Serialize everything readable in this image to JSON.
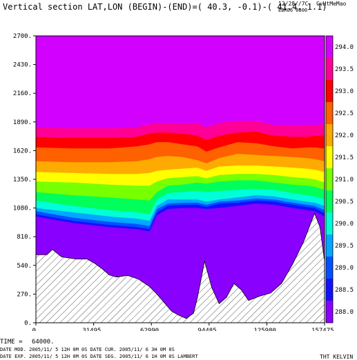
{
  "header": {
    "title": "Vertical section LAT,LON (BEGIN)-(END)=( 40.3, -0.1)-( 41.4,  1.1)",
    "date_code": "12/28//7C",
    "run_code": "EBR06 0300",
    "org_code": "CvHtMeMao"
  },
  "footer": {
    "time_label": "TIME =",
    "time_value": "64000.",
    "line1": "DATE MOD. 2005/11/ 5   12H 0M 0S     DATE CUR. 2005/11/ 6   3H 0M 0S",
    "line2": "DATE EXP.  2005/11/ 5  12H 0M 0S     DATE SEG. 2005/11/ 6   1H 0M 0S     LAMBERT",
    "variable": "THT KELVIN"
  },
  "chart_data": {
    "type": "contour",
    "x": {
      "ticks": [
        0,
        31495,
        62990,
        94485,
        125980,
        157475
      ],
      "tick_labels": [
        "0.",
        "31495.",
        "62990.",
        "94485.",
        "125980.",
        "157475."
      ],
      "range": [
        0,
        157475
      ]
    },
    "y": {
      "ticks": [
        0,
        270,
        540,
        810,
        1080,
        1350,
        1620,
        1890,
        2160,
        2430,
        2700
      ],
      "tick_labels": [
        "0.",
        "270.",
        "540.",
        "810.",
        "1080.",
        "1350.",
        "1620.",
        "1890.",
        "2160.",
        "2430.",
        "2700."
      ],
      "range": [
        0,
        2700
      ]
    },
    "colorbar": {
      "levels": [
        288.0,
        288.5,
        289.0,
        289.5,
        290.0,
        290.5,
        291.0,
        291.5,
        292.0,
        292.5,
        293.0,
        293.5,
        294.0
      ],
      "labels": [
        "288.0",
        "288.5",
        "289.0",
        "289.5",
        "290.0",
        "290.5",
        "291.0",
        "291.5",
        "292.0",
        "292.5",
        "293.0",
        "293.5",
        "294.0"
      ],
      "colors": [
        "#8a00ff",
        "#1410ff",
        "#0050ff",
        "#00a8ff",
        "#00ffd8",
        "#00ff5a",
        "#78ff00",
        "#ffff00",
        "#ffaa00",
        "#ff6000",
        "#ff0000",
        "#ff0096",
        "#d200ff"
      ]
    },
    "terrain": [
      [
        0,
        640
      ],
      [
        6000,
        640
      ],
      [
        9000,
        690
      ],
      [
        14000,
        620
      ],
      [
        22000,
        600
      ],
      [
        28000,
        600
      ],
      [
        32000,
        560
      ],
      [
        36000,
        510
      ],
      [
        40000,
        450
      ],
      [
        44000,
        430
      ],
      [
        50000,
        445
      ],
      [
        56000,
        410
      ],
      [
        62000,
        340
      ],
      [
        66000,
        270
      ],
      [
        70000,
        190
      ],
      [
        74000,
        110
      ],
      [
        78000,
        70
      ],
      [
        82000,
        40
      ],
      [
        86000,
        90
      ],
      [
        88000,
        230
      ],
      [
        90000,
        400
      ],
      [
        92000,
        580
      ],
      [
        96000,
        330
      ],
      [
        100000,
        180
      ],
      [
        104000,
        240
      ],
      [
        108000,
        370
      ],
      [
        112000,
        310
      ],
      [
        116000,
        210
      ],
      [
        122000,
        250
      ],
      [
        128000,
        280
      ],
      [
        134000,
        370
      ],
      [
        140000,
        550
      ],
      [
        146000,
        760
      ],
      [
        152000,
        1030
      ],
      [
        155000,
        900
      ],
      [
        157475,
        580
      ]
    ],
    "contours": [
      {
        "level": 288.0,
        "points": [
          [
            0,
            1000
          ],
          [
            20000,
            940
          ],
          [
            40000,
            900
          ],
          [
            55000,
            880
          ],
          [
            62000,
            860
          ],
          [
            66000,
            1010
          ],
          [
            72000,
            1070
          ],
          [
            80000,
            1080
          ],
          [
            88000,
            1080
          ],
          [
            93000,
            1070
          ],
          [
            100000,
            1080
          ],
          [
            110000,
            1100
          ],
          [
            120000,
            1120
          ],
          [
            130000,
            1110
          ],
          [
            140000,
            1080
          ],
          [
            148000,
            1060
          ],
          [
            152000,
            1050
          ],
          [
            157475,
            1000
          ]
        ]
      },
      {
        "level": 288.5,
        "points": [
          [
            0,
            1020
          ],
          [
            20000,
            960
          ],
          [
            40000,
            920
          ],
          [
            55000,
            900
          ],
          [
            62000,
            880
          ],
          [
            66000,
            1040
          ],
          [
            72000,
            1100
          ],
          [
            80000,
            1110
          ],
          [
            88000,
            1110
          ],
          [
            93000,
            1090
          ],
          [
            100000,
            1120
          ],
          [
            110000,
            1130
          ],
          [
            120000,
            1150
          ],
          [
            130000,
            1140
          ],
          [
            140000,
            1110
          ],
          [
            148000,
            1090
          ],
          [
            152000,
            1080
          ],
          [
            157475,
            1030
          ]
        ]
      },
      {
        "level": 289.0,
        "points": [
          [
            0,
            1050
          ],
          [
            20000,
            990
          ],
          [
            40000,
            950
          ],
          [
            55000,
            930
          ],
          [
            62000,
            910
          ],
          [
            66000,
            1070
          ],
          [
            72000,
            1120
          ],
          [
            80000,
            1130
          ],
          [
            88000,
            1130
          ],
          [
            93000,
            1110
          ],
          [
            100000,
            1140
          ],
          [
            110000,
            1150
          ],
          [
            120000,
            1170
          ],
          [
            130000,
            1160
          ],
          [
            140000,
            1130
          ],
          [
            148000,
            1110
          ],
          [
            152000,
            1100
          ],
          [
            157475,
            1060
          ]
        ]
      },
      {
        "level": 289.5,
        "points": [
          [
            0,
            1080
          ],
          [
            20000,
            1040
          ],
          [
            40000,
            1000
          ],
          [
            55000,
            980
          ],
          [
            62000,
            960
          ],
          [
            66000,
            1100
          ],
          [
            72000,
            1160
          ],
          [
            80000,
            1160
          ],
          [
            88000,
            1160
          ],
          [
            93000,
            1140
          ],
          [
            100000,
            1160
          ],
          [
            110000,
            1180
          ],
          [
            120000,
            1200
          ],
          [
            130000,
            1190
          ],
          [
            140000,
            1160
          ],
          [
            148000,
            1140
          ],
          [
            152000,
            1130
          ],
          [
            157475,
            1100
          ]
        ]
      },
      {
        "level": 290.0,
        "points": [
          [
            0,
            1150
          ],
          [
            20000,
            1100
          ],
          [
            40000,
            1060
          ],
          [
            55000,
            1040
          ],
          [
            62000,
            1020
          ],
          [
            66000,
            1160
          ],
          [
            72000,
            1220
          ],
          [
            80000,
            1230
          ],
          [
            88000,
            1240
          ],
          [
            93000,
            1230
          ],
          [
            100000,
            1240
          ],
          [
            110000,
            1250
          ],
          [
            120000,
            1260
          ],
          [
            130000,
            1250
          ],
          [
            140000,
            1220
          ],
          [
            148000,
            1200
          ],
          [
            152000,
            1190
          ],
          [
            157475,
            1160
          ]
        ]
      },
      {
        "level": 290.5,
        "points": [
          [
            0,
            1230
          ],
          [
            20000,
            1200
          ],
          [
            40000,
            1180
          ],
          [
            55000,
            1160
          ],
          [
            62000,
            1150
          ],
          [
            66000,
            1230
          ],
          [
            72000,
            1290
          ],
          [
            80000,
            1300
          ],
          [
            88000,
            1320
          ],
          [
            93000,
            1310
          ],
          [
            100000,
            1330
          ],
          [
            110000,
            1340
          ],
          [
            120000,
            1340
          ],
          [
            130000,
            1320
          ],
          [
            140000,
            1300
          ],
          [
            148000,
            1290
          ],
          [
            152000,
            1280
          ],
          [
            157475,
            1250
          ]
        ]
      },
      {
        "level": 291.0,
        "points": [
          [
            0,
            1330
          ],
          [
            20000,
            1320
          ],
          [
            40000,
            1300
          ],
          [
            55000,
            1290
          ],
          [
            62000,
            1290
          ],
          [
            66000,
            1330
          ],
          [
            72000,
            1360
          ],
          [
            80000,
            1370
          ],
          [
            88000,
            1380
          ],
          [
            93000,
            1360
          ],
          [
            100000,
            1390
          ],
          [
            110000,
            1400
          ],
          [
            120000,
            1400
          ],
          [
            130000,
            1390
          ],
          [
            140000,
            1370
          ],
          [
            148000,
            1360
          ],
          [
            152000,
            1350
          ],
          [
            157475,
            1320
          ]
        ]
      },
      {
        "level": 291.5,
        "points": [
          [
            0,
            1420
          ],
          [
            20000,
            1410
          ],
          [
            40000,
            1400
          ],
          [
            55000,
            1400
          ],
          [
            62000,
            1410
          ],
          [
            66000,
            1430
          ],
          [
            72000,
            1440
          ],
          [
            80000,
            1450
          ],
          [
            88000,
            1460
          ],
          [
            93000,
            1430
          ],
          [
            100000,
            1470
          ],
          [
            110000,
            1480
          ],
          [
            120000,
            1480
          ],
          [
            130000,
            1470
          ],
          [
            140000,
            1460
          ],
          [
            148000,
            1450
          ],
          [
            152000,
            1440
          ],
          [
            157475,
            1420
          ]
        ]
      },
      {
        "level": 292.0,
        "points": [
          [
            0,
            1520
          ],
          [
            20000,
            1510
          ],
          [
            40000,
            1510
          ],
          [
            55000,
            1520
          ],
          [
            62000,
            1540
          ],
          [
            66000,
            1560
          ],
          [
            72000,
            1570
          ],
          [
            80000,
            1560
          ],
          [
            88000,
            1530
          ],
          [
            93000,
            1500
          ],
          [
            100000,
            1550
          ],
          [
            110000,
            1590
          ],
          [
            120000,
            1580
          ],
          [
            130000,
            1570
          ],
          [
            140000,
            1560
          ],
          [
            148000,
            1550
          ],
          [
            152000,
            1540
          ],
          [
            157475,
            1520
          ]
        ]
      },
      {
        "level": 292.5,
        "points": [
          [
            0,
            1650
          ],
          [
            20000,
            1640
          ],
          [
            40000,
            1640
          ],
          [
            55000,
            1660
          ],
          [
            62000,
            1680
          ],
          [
            66000,
            1700
          ],
          [
            72000,
            1700
          ],
          [
            80000,
            1680
          ],
          [
            88000,
            1660
          ],
          [
            93000,
            1610
          ],
          [
            100000,
            1650
          ],
          [
            110000,
            1700
          ],
          [
            120000,
            1690
          ],
          [
            130000,
            1660
          ],
          [
            140000,
            1640
          ],
          [
            148000,
            1650
          ],
          [
            152000,
            1650
          ],
          [
            157475,
            1640
          ]
        ]
      },
      {
        "level": 293.0,
        "points": [
          [
            0,
            1750
          ],
          [
            20000,
            1740
          ],
          [
            40000,
            1740
          ],
          [
            55000,
            1750
          ],
          [
            62000,
            1780
          ],
          [
            66000,
            1790
          ],
          [
            72000,
            1790
          ],
          [
            80000,
            1780
          ],
          [
            88000,
            1760
          ],
          [
            93000,
            1720
          ],
          [
            100000,
            1760
          ],
          [
            110000,
            1790
          ],
          [
            120000,
            1800
          ],
          [
            130000,
            1760
          ],
          [
            140000,
            1750
          ],
          [
            148000,
            1750
          ],
          [
            152000,
            1760
          ],
          [
            157475,
            1760
          ]
        ]
      },
      {
        "level": 293.5,
        "points": [
          [
            0,
            1840
          ],
          [
            20000,
            1830
          ],
          [
            40000,
            1830
          ],
          [
            55000,
            1840
          ],
          [
            62000,
            1870
          ],
          [
            66000,
            1880
          ],
          [
            72000,
            1880
          ],
          [
            80000,
            1870
          ],
          [
            88000,
            1880
          ],
          [
            93000,
            1840
          ],
          [
            100000,
            1880
          ],
          [
            110000,
            1900
          ],
          [
            120000,
            1900
          ],
          [
            130000,
            1860
          ],
          [
            140000,
            1860
          ],
          [
            148000,
            1860
          ],
          [
            152000,
            1860
          ],
          [
            157475,
            1870
          ]
        ]
      },
      {
        "level": 294.0,
        "points": [
          [
            0,
            1990
          ],
          [
            20000,
            1990
          ],
          [
            40000,
            1980
          ],
          [
            55000,
            1980
          ],
          [
            62000,
            1990
          ],
          [
            66000,
            1990
          ],
          [
            72000,
            1990
          ],
          [
            80000,
            1980
          ],
          [
            88000,
            1970
          ],
          [
            93000,
            1960
          ],
          [
            100000,
            1990
          ],
          [
            110000,
            2000
          ],
          [
            120000,
            2010
          ],
          [
            130000,
            1980
          ],
          [
            140000,
            1950
          ],
          [
            148000,
            1940
          ],
          [
            152000,
            1930
          ],
          [
            157475,
            1930
          ]
        ]
      }
    ]
  }
}
